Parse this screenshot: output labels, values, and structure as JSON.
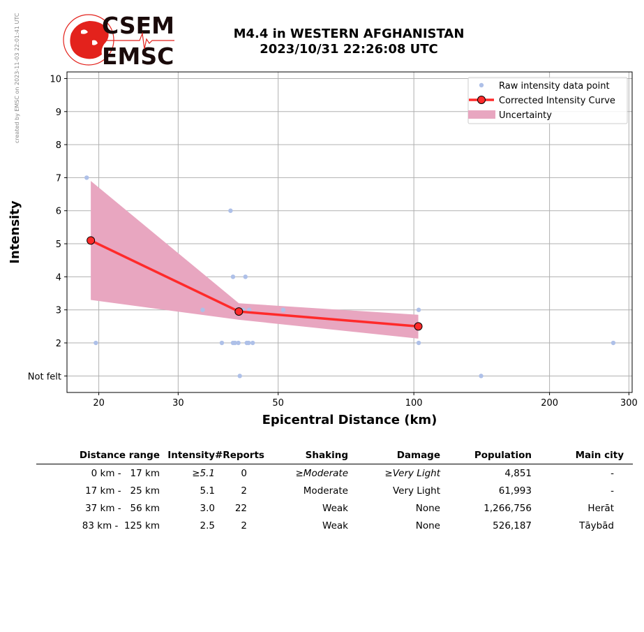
{
  "header": {
    "credit": "created by EMSC on 2023-11-03 22:01:41 UTC",
    "logo_top": "CSEM",
    "logo_bottom": "EMSC",
    "title_line1": "M4.4 in WESTERN AFGHANISTAN",
    "title_line2": "2023/10/31 22:26:08 UTC"
  },
  "colors": {
    "raw_points": "#aec0e8",
    "curve": "#ff2a2a",
    "curve_marker_edge": "#000000",
    "uncertainty": "#e8a6c0",
    "grid": "#b0b0b0",
    "logo_red": "#e3221c"
  },
  "chart_data": {
    "type": "scatter",
    "xscale": "log",
    "xlabel": "Epicentral Distance (km)",
    "ylabel": "Intensity",
    "xlim": [
      17,
      305
    ],
    "ylim": [
      0.5,
      10.2
    ],
    "xticks": [
      20,
      30,
      50,
      100,
      200,
      300
    ],
    "yticks": [
      1,
      2,
      3,
      4,
      5,
      6,
      7,
      8,
      9,
      10
    ],
    "ytick_labels": [
      "Not felt",
      "2",
      "3",
      "4",
      "5",
      "6",
      "7",
      "8",
      "9",
      "10"
    ],
    "grid": true,
    "legend": {
      "position": "top-right",
      "entries": [
        "Raw intensity data point",
        "Corrected Intensity Curve",
        "Uncertainty"
      ]
    },
    "raw_points": [
      {
        "x": 18.8,
        "y": 7
      },
      {
        "x": 19.7,
        "y": 2
      },
      {
        "x": 34.0,
        "y": 3
      },
      {
        "x": 37.5,
        "y": 2
      },
      {
        "x": 39.2,
        "y": 6
      },
      {
        "x": 39.7,
        "y": 4
      },
      {
        "x": 39.7,
        "y": 2
      },
      {
        "x": 40.1,
        "y": 2
      },
      {
        "x": 40.8,
        "y": 2
      },
      {
        "x": 41.1,
        "y": 1
      },
      {
        "x": 41.8,
        "y": 3
      },
      {
        "x": 42.3,
        "y": 4
      },
      {
        "x": 42.6,
        "y": 2
      },
      {
        "x": 43.0,
        "y": 2
      },
      {
        "x": 43.1,
        "y": 3
      },
      {
        "x": 43.9,
        "y": 2
      },
      {
        "x": 51.3,
        "y": 3
      },
      {
        "x": 102.5,
        "y": 3
      },
      {
        "x": 102.5,
        "y": 2
      },
      {
        "x": 141.0,
        "y": 1
      },
      {
        "x": 277.0,
        "y": 2
      }
    ],
    "curve": [
      {
        "x": 19.2,
        "y": 5.1
      },
      {
        "x": 40.9,
        "y": 2.95
      },
      {
        "x": 102.3,
        "y": 2.5
      }
    ],
    "uncertainty_upper": [
      {
        "x": 19.2,
        "y": 6.9
      },
      {
        "x": 40.9,
        "y": 3.2
      },
      {
        "x": 102.3,
        "y": 2.85
      }
    ],
    "uncertainty_lower": [
      {
        "x": 19.2,
        "y": 3.3
      },
      {
        "x": 40.9,
        "y": 2.7
      },
      {
        "x": 102.3,
        "y": 2.13
      }
    ]
  },
  "table": {
    "headers": [
      "Distance range",
      "Intensity",
      "#Reports",
      "Shaking",
      "Damage",
      "Population",
      "Main city"
    ],
    "rows": [
      {
        "range": "0 km -   17 km",
        "intensity": "≥5.1",
        "reports": "0",
        "shaking": "≥Moderate",
        "damage": "≥Very Light",
        "population": "4,851",
        "city": "-",
        "italic": true
      },
      {
        "range": "17 km -   25 km",
        "intensity": "5.1",
        "reports": "2",
        "shaking": "Moderate",
        "damage": "Very Light",
        "population": "61,993",
        "city": "-",
        "italic": false
      },
      {
        "range": "37 km -   56 km",
        "intensity": "3.0",
        "reports": "22",
        "shaking": "Weak",
        "damage": "None",
        "population": "1,266,756",
        "city": "Herāt",
        "italic": false
      },
      {
        "range": "83 km -  125 km",
        "intensity": "2.5",
        "reports": "2",
        "shaking": "Weak",
        "damage": "None",
        "population": "526,187",
        "city": "Tāybād",
        "italic": false
      }
    ]
  }
}
